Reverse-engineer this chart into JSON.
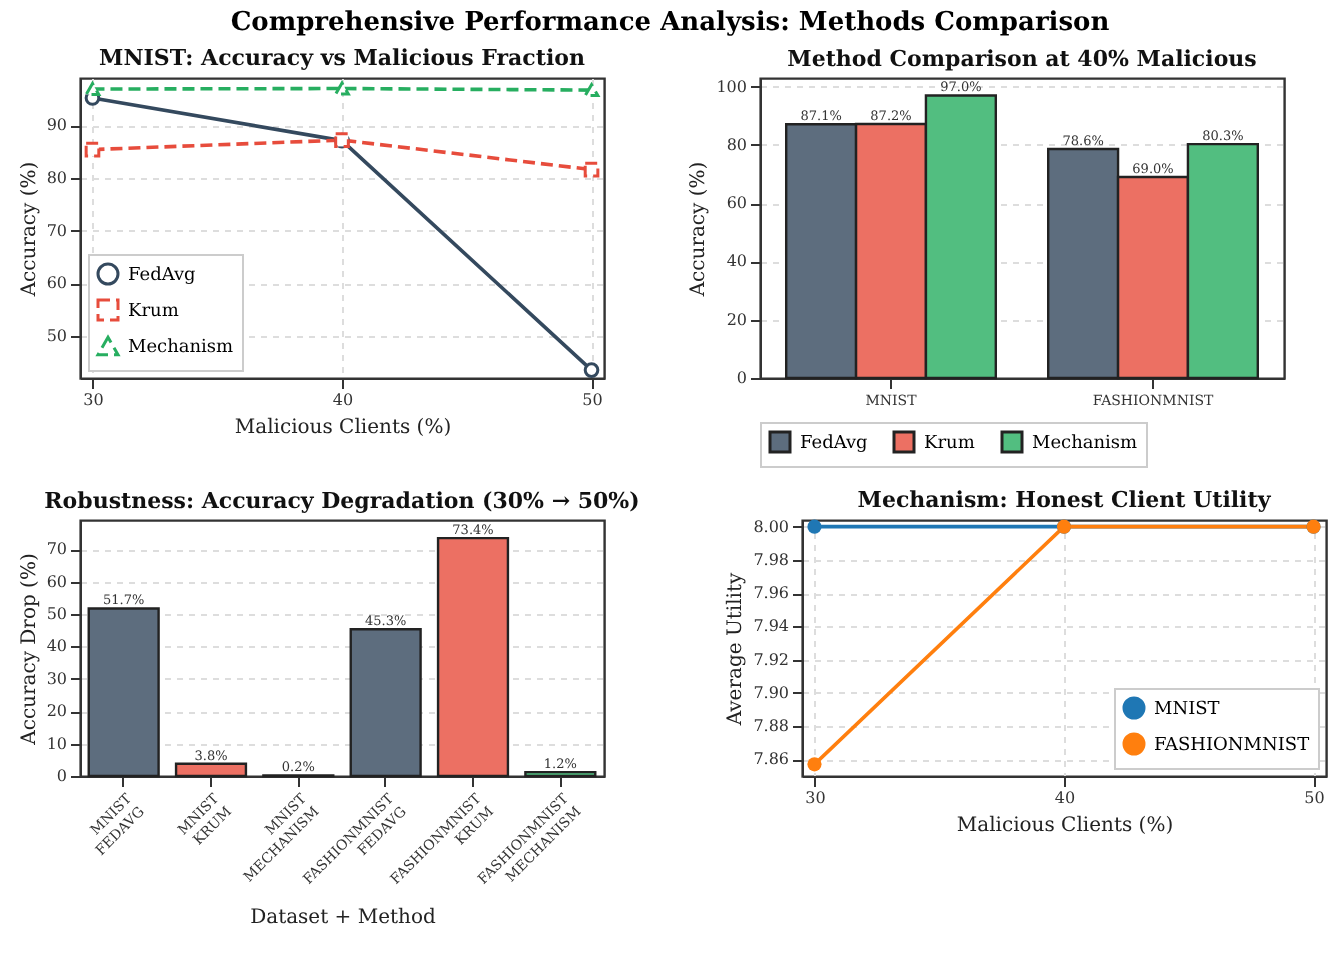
{
  "chart_data": [
    {
      "type": "line",
      "title": "MNIST: Accuracy vs Malicious Fraction",
      "annotations": [
        "Comprehensive Performance Analysis: Methods Comparison"
      ],
      "xlabel": "Malicious Clients (%)",
      "ylabel": "Accuracy (%)",
      "x": [
        30,
        40,
        50
      ],
      "xlim": [
        29.5,
        50.5
      ],
      "xticks": [
        30,
        40,
        50
      ],
      "ylim": [
        42,
        99
      ],
      "yticks": [
        50,
        60,
        70,
        80,
        90
      ],
      "grid": true,
      "legend": "bottom left",
      "series": [
        {
          "name": "FedAvg",
          "color": "#34495e",
          "values": [
            95.2,
            87.1,
            43.5
          ],
          "marker": "circle",
          "line_style": "solid"
        },
        {
          "name": "Krum",
          "color": "#e74c3c",
          "values": [
            85.4,
            87.2,
            81.6
          ],
          "marker": "square",
          "line_style": "dashed"
        },
        {
          "name": "Mechanism",
          "color": "#27ae60",
          "values": [
            96.9,
            97.0,
            96.7
          ],
          "marker": "triangle",
          "line_style": "dashed"
        }
      ]
    },
    {
      "type": "bar",
      "title": "Method Comparison at 40% Malicious",
      "ylabel": "Accuracy (%)",
      "categories": [
        "MNIST",
        "FASHIONMNIST"
      ],
      "ylim": [
        0,
        103
      ],
      "yticks": [
        0,
        20,
        40,
        60,
        80,
        100
      ],
      "grid": "y",
      "legend": "bottom",
      "series": [
        {
          "name": "FedAvg",
          "color": "#5d6d7e",
          "values": [
            87.1,
            78.6
          ],
          "value_labels": [
            "87.1%",
            "78.6%"
          ]
        },
        {
          "name": "Krum",
          "color": "#ec7063",
          "values": [
            87.2,
            69.0
          ],
          "value_labels": [
            "87.2%",
            "69.0%"
          ]
        },
        {
          "name": "Mechanism",
          "color": "#52be80",
          "values": [
            97.0,
            80.3
          ],
          "value_labels": [
            "97.0%",
            "80.3%"
          ]
        }
      ]
    },
    {
      "type": "bar",
      "title": "Robustness: Accuracy Degradation (30% → 50%)",
      "xlabel": "Dataset + Method",
      "ylabel": "Accuracy Drop (%)",
      "categories": [
        "MNIST\nFEDAVG",
        "MNIST\nKRUM",
        "MNIST\nMECHANISM",
        "FASHIONMNIST\nFEDAVG",
        "FASHIONMNIST\nKRUM",
        "FASHIONMNIST\nMECHANISM"
      ],
      "values": [
        51.7,
        3.8,
        0.2,
        45.3,
        73.4,
        1.2
      ],
      "value_labels": [
        "51.7%",
        "3.8%",
        "0.2%",
        "45.3%",
        "73.4%",
        "1.2%"
      ],
      "colors": [
        "#5d6d7e",
        "#ec7063",
        "#52be80",
        "#5d6d7e",
        "#ec7063",
        "#52be80"
      ],
      "ylim": [
        0,
        79
      ],
      "yticks": [
        0,
        10,
        20,
        30,
        40,
        50,
        60,
        70
      ],
      "grid": "y"
    },
    {
      "type": "line",
      "title": "Mechanism: Honest Client Utility",
      "xlabel": "Malicious Clients (%)",
      "ylabel": "Average Utility",
      "x": [
        30,
        40,
        50
      ],
      "xlim": [
        29.5,
        50.5
      ],
      "xticks": [
        30,
        40,
        50
      ],
      "ylim": [
        7.85,
        8.004
      ],
      "yticks": [
        7.86,
        7.88,
        {
          "value": 7.9,
          "label": "7.90"
        },
        7.92,
        7.94,
        7.96,
        7.98,
        {
          "value": 8,
          "label": "8.00"
        }
      ],
      "grid": true,
      "legend": "bottom right",
      "marker": "circle",
      "series": [
        {
          "name": "MNIST",
          "color": "#1f77b4",
          "values": [
            8.0,
            8.0,
            8.0
          ]
        },
        {
          "name": "FASHIONMNIST",
          "color": "#ff7f0e",
          "values": [
            7.857,
            8.0,
            8.0
          ]
        }
      ]
    }
  ]
}
